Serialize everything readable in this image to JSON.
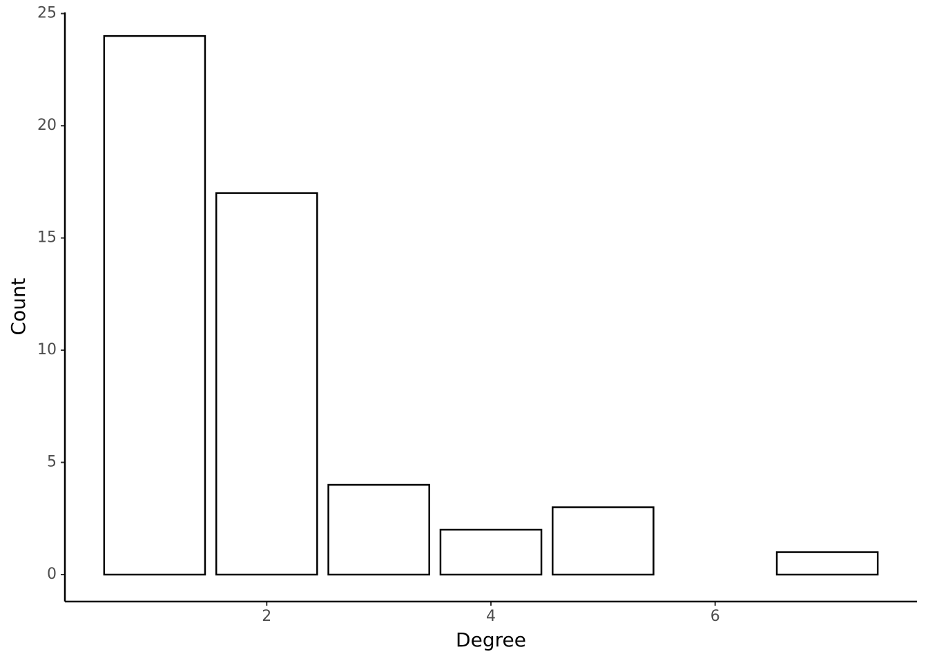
{
  "chart_data": {
    "type": "bar",
    "x_label": "Degree",
    "y_label": "Count",
    "x": [
      1,
      2,
      3,
      4,
      5,
      7
    ],
    "values": [
      24,
      17,
      4,
      2,
      3,
      1
    ],
    "fill": "#ffffff",
    "color": "#000000",
    "xlim": [
      0.2,
      7.8
    ],
    "xticks": [
      2,
      4,
      6
    ],
    "ylim": [
      -1.2,
      25.05
    ],
    "yticks": [
      0,
      5,
      10,
      15,
      20,
      25
    ],
    "grid": false
  }
}
